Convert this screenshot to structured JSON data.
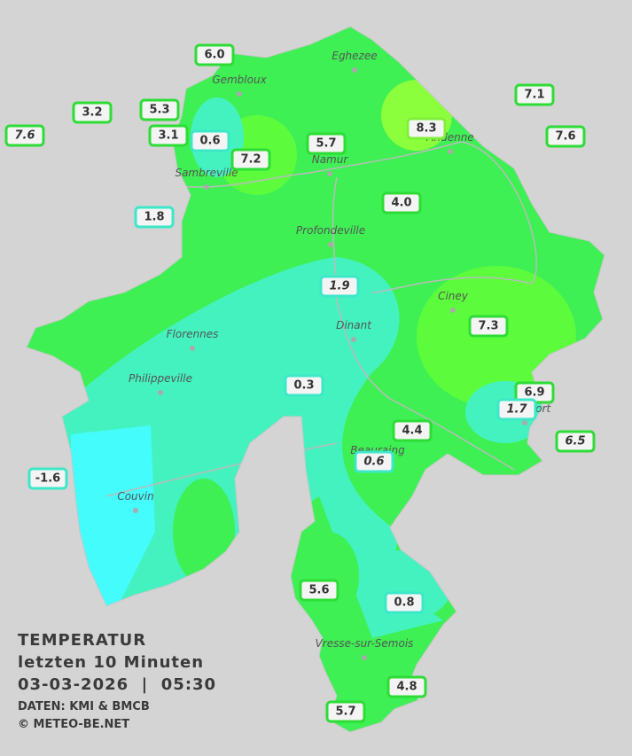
{
  "legend": {
    "title": "TEMPERATUR",
    "subtitle": "letzten 10 Minuten",
    "datetime": "03-03-2026  |  05:30",
    "source": "DATEN: KMI & BMCB",
    "copyright": "© METEO-BE.NET"
  },
  "cities": [
    "Eghezee",
    "Gembloux",
    "Andenne",
    "Namur",
    "Sambreville",
    "Profondeville",
    "Ciney",
    "Dinant",
    "Florennes",
    "Philippeville",
    "Rochefort",
    "Beauraing",
    "Couvin",
    "Vresse-sur-Semois"
  ],
  "stations": [
    "6.0",
    "3.2",
    "5.3",
    "7.6",
    "3.1",
    "0.6",
    "5.7",
    "7.2",
    "8.3",
    "7.1",
    "7.6",
    "4.0",
    "1.8",
    "1.9",
    "7.3",
    "0.3",
    "6.9",
    "1.7",
    "4.4",
    "6.5",
    "0.6",
    "-1.6",
    "5.6",
    "0.8",
    "4.8",
    "5.7"
  ]
}
